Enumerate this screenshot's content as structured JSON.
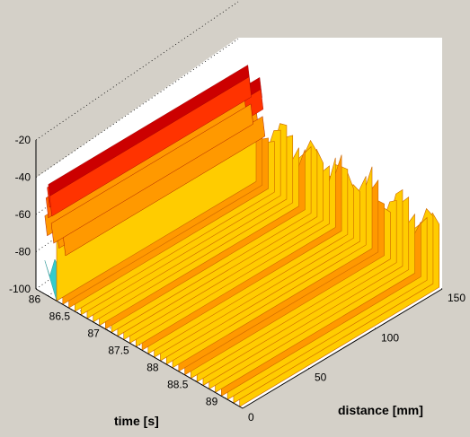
{
  "chart_data": {
    "type": "surface",
    "xlabel": "distance [mm]",
    "ylabel": "time [s]",
    "zlabel": "",
    "xlim": [
      0,
      150
    ],
    "ylim": [
      85.8,
      89.3
    ],
    "zlim": [
      -100,
      -20
    ],
    "x_ticks": [
      "0",
      "50",
      "100",
      "150"
    ],
    "y_ticks": [
      "86",
      "86.5",
      "87",
      "87.5",
      "88",
      "88.5",
      "89"
    ],
    "z_ticks": [
      "-20",
      "-40",
      "-60",
      "-80",
      "-100"
    ],
    "grid": true,
    "colormap": "jet",
    "ridges": [
      {
        "time": 86.0,
        "level": -40
      },
      {
        "time": 86.2,
        "level": -43
      }
    ],
    "background_level": -66,
    "colors": {
      "background": "#d4d0c8",
      "axes_face": "#ffffff",
      "grid": "#000000",
      "ridge_peak": "#cc0000",
      "ridge_shoulder": "#ff6600",
      "surface_mid": "#ffcc00",
      "surface_low": "#33cccc"
    }
  }
}
